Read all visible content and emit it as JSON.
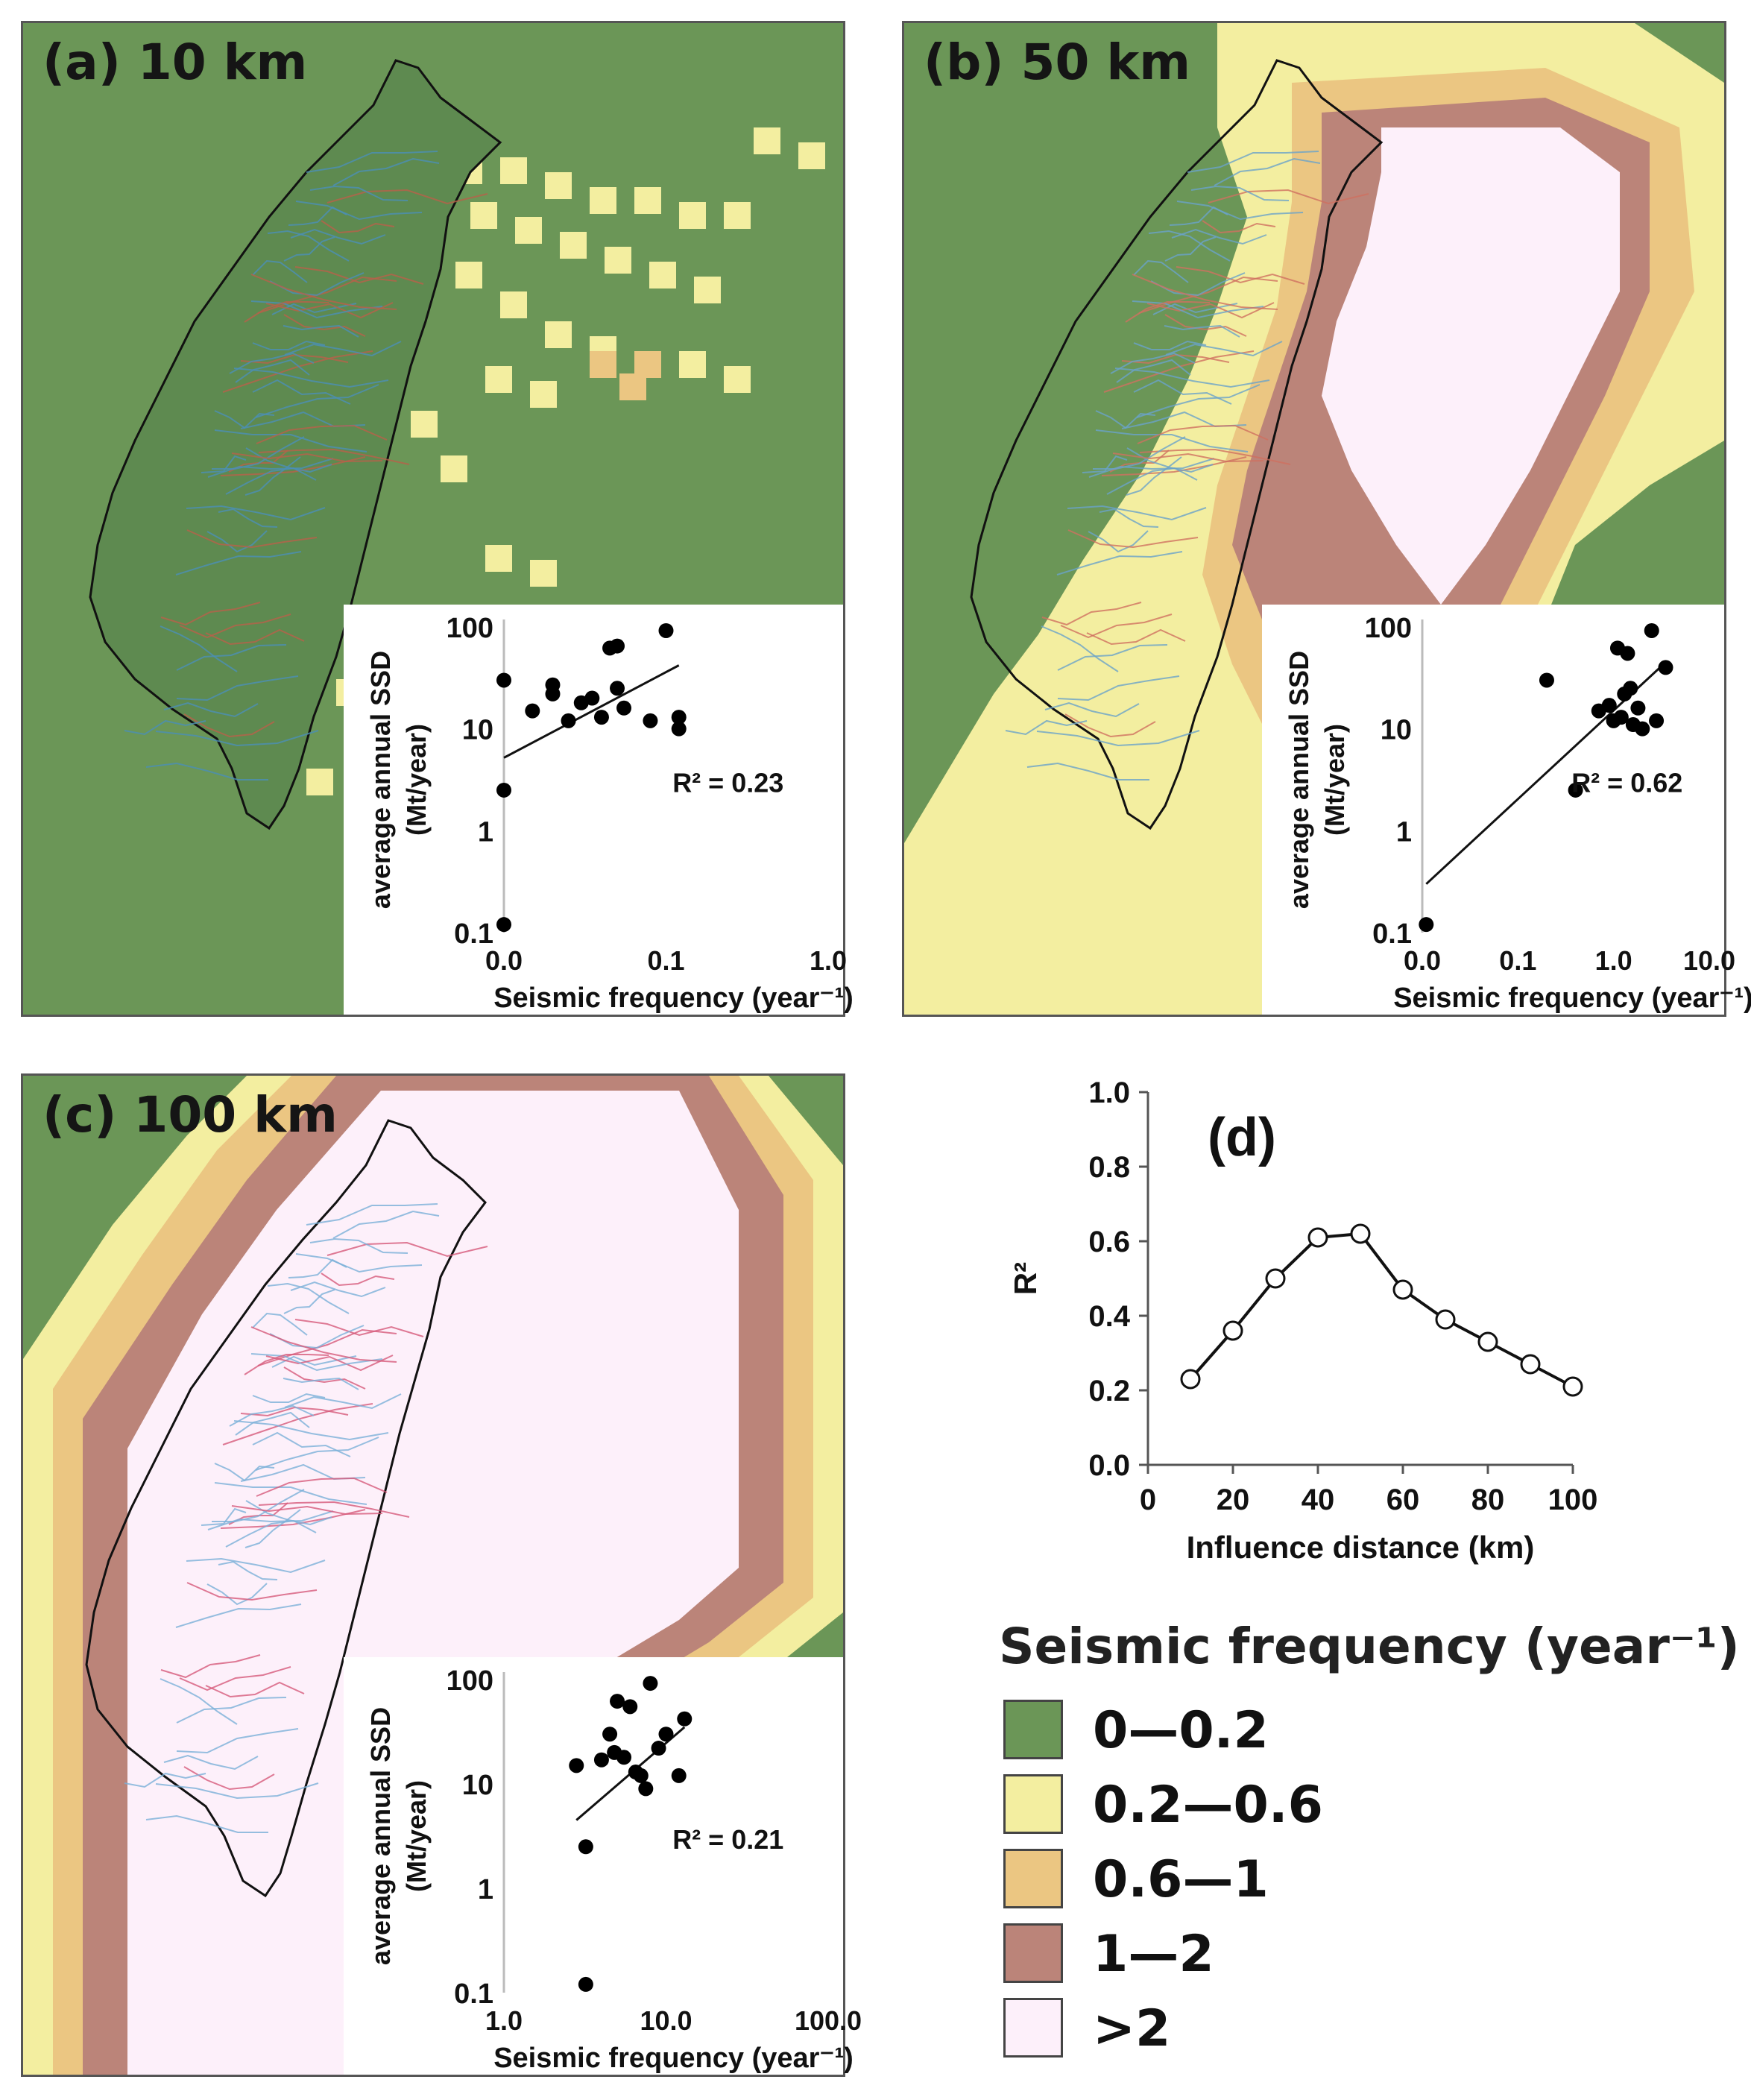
{
  "panels": [
    {
      "id": "a",
      "label": "(a) 10 km",
      "r2_label": "R² = 0.23",
      "xaxis": "Seismic frequency (year⁻¹)",
      "yaxis_line1": "average annual SSD",
      "yaxis_line2": "(Mt/year)",
      "xticks": [
        "0.0",
        "0.1",
        "1.0"
      ],
      "yticks": [
        "100",
        "10",
        "1",
        "0.1"
      ]
    },
    {
      "id": "b",
      "label": "(b) 50 km",
      "r2_label": "R² = 0.62",
      "xaxis": "Seismic frequency (year⁻¹)",
      "yaxis_line1": "average annual SSD",
      "yaxis_line2": "(Mt/year)",
      "xticks": [
        "0.0",
        "0.1",
        "1.0",
        "10.0"
      ],
      "yticks": [
        "100",
        "10",
        "1",
        "0.1"
      ]
    },
    {
      "id": "c",
      "label": "(c) 100 km",
      "r2_label": "R² = 0.21",
      "xaxis": "Seismic frequency (year⁻¹)",
      "yaxis_line1": "average annual SSD",
      "yaxis_line2": "(Mt/year)",
      "xticks": [
        "1.0",
        "10.0",
        "100.0"
      ],
      "yticks": [
        "100",
        "10",
        "1",
        "0.1"
      ]
    }
  ],
  "panel_d": {
    "label": "(d)",
    "ylabel": "R²",
    "xlabel": "Influence distance (km)",
    "xticks": [
      "0",
      "20",
      "40",
      "60",
      "80",
      "100"
    ],
    "yticks": [
      "0.0",
      "0.2",
      "0.4",
      "0.6",
      "0.8",
      "1.0"
    ]
  },
  "legend": {
    "title": "Seismic frequency (year⁻¹)",
    "items": [
      {
        "label": "0—0.2",
        "color": "#6b9657"
      },
      {
        "label": "0.2—0.6",
        "color": "#f3eea0"
      },
      {
        "label": "0.6—1",
        "color": "#ebc682"
      },
      {
        "label": "1—2",
        "color": "#bb8479"
      },
      {
        "label": ">2",
        "color": "#fdf0fa"
      }
    ]
  },
  "chart_data": [
    {
      "type": "scatter",
      "panel": "a",
      "x_scale": "log",
      "y_scale": "log",
      "xlim": [
        0.01,
        1.0
      ],
      "ylim": [
        0.1,
        100
      ],
      "r2": 0.23,
      "points": [
        [
          0.01,
          30
        ],
        [
          0.01,
          2.5
        ],
        [
          0.01,
          0.12
        ],
        [
          0.015,
          15
        ],
        [
          0.02,
          27
        ],
        [
          0.02,
          22
        ],
        [
          0.025,
          12
        ],
        [
          0.03,
          18
        ],
        [
          0.035,
          20
        ],
        [
          0.04,
          13
        ],
        [
          0.045,
          62
        ],
        [
          0.05,
          65
        ],
        [
          0.05,
          25
        ],
        [
          0.055,
          16
        ],
        [
          0.08,
          12
        ],
        [
          0.1,
          92
        ],
        [
          0.12,
          13
        ],
        [
          0.12,
          10
        ]
      ],
      "trend": [
        [
          0.01,
          5.2
        ],
        [
          0.12,
          42
        ]
      ]
    },
    {
      "type": "scatter",
      "panel": "b",
      "x_scale": "log",
      "y_scale": "log",
      "xlim": [
        0.01,
        10.0
      ],
      "ylim": [
        0.1,
        100
      ],
      "r2": 0.62,
      "points": [
        [
          0.011,
          0.12
        ],
        [
          0.2,
          30
        ],
        [
          0.4,
          2.5
        ],
        [
          0.7,
          15
        ],
        [
          0.9,
          17
        ],
        [
          1.0,
          12
        ],
        [
          1.1,
          62
        ],
        [
          1.2,
          13
        ],
        [
          1.3,
          22
        ],
        [
          1.4,
          55
        ],
        [
          1.5,
          25
        ],
        [
          1.6,
          11
        ],
        [
          1.8,
          16
        ],
        [
          2.0,
          10
        ],
        [
          2.5,
          92
        ],
        [
          2.8,
          12
        ],
        [
          3.5,
          40
        ]
      ],
      "trend": [
        [
          0.011,
          0.3
        ],
        [
          3.5,
          45
        ]
      ]
    },
    {
      "type": "scatter",
      "panel": "c",
      "x_scale": "log",
      "y_scale": "log",
      "xlim": [
        1.0,
        100.0
      ],
      "ylim": [
        0.1,
        100
      ],
      "r2": 0.21,
      "points": [
        [
          2.8,
          15
        ],
        [
          3.2,
          2.5
        ],
        [
          3.2,
          0.12
        ],
        [
          4.0,
          17
        ],
        [
          4.5,
          30
        ],
        [
          4.8,
          20
        ],
        [
          5.0,
          62
        ],
        [
          5.5,
          18
        ],
        [
          6.0,
          55
        ],
        [
          6.5,
          13
        ],
        [
          7.0,
          12
        ],
        [
          7.5,
          9
        ],
        [
          8.0,
          92
        ],
        [
          9.0,
          22
        ],
        [
          10.0,
          30
        ],
        [
          12.0,
          12
        ],
        [
          13.0,
          42
        ]
      ],
      "trend": [
        [
          2.8,
          4.5
        ],
        [
          13.0,
          35
        ]
      ]
    },
    {
      "type": "line",
      "panel": "d",
      "x": [
        10,
        20,
        30,
        40,
        50,
        60,
        70,
        80,
        90,
        100
      ],
      "y": [
        0.23,
        0.36,
        0.5,
        0.61,
        0.62,
        0.47,
        0.39,
        0.33,
        0.27,
        0.21
      ],
      "xlabel": "Influence distance (km)",
      "ylabel": "R²",
      "xlim": [
        0,
        100
      ],
      "ylim": [
        0,
        1.0
      ]
    }
  ]
}
